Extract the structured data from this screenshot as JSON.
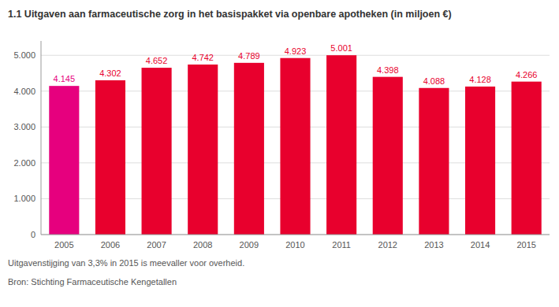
{
  "chart_data": {
    "type": "bar",
    "title": "1.1 Uitgaven aan farmaceutische zorg in het basispakket via openbare apotheken (in miljoen €)",
    "categories": [
      "2005",
      "2006",
      "2007",
      "2008",
      "2009",
      "2010",
      "2011",
      "2012",
      "2013",
      "2014",
      "2015"
    ],
    "values": [
      4145,
      4302,
      4652,
      4742,
      4789,
      4923,
      5001,
      4398,
      4088,
      4128,
      4266
    ],
    "value_labels": [
      "4.145",
      "4.302",
      "4.652",
      "4.742",
      "4.789",
      "4.923",
      "5.001",
      "4.398",
      "4.088",
      "4.128",
      "4.266"
    ],
    "data_labels": true,
    "colors": [
      "#e6007e",
      "#e8002d",
      "#e8002d",
      "#e8002d",
      "#e8002d",
      "#e8002d",
      "#e8002d",
      "#e8002d",
      "#e8002d",
      "#e8002d",
      "#e8002d"
    ],
    "ylim": [
      0,
      5400
    ],
    "yticks": [
      0,
      {
        "value": 1000,
        "label": "1.000"
      },
      {
        "value": 2000,
        "label": "2.000"
      },
      {
        "value": 3000,
        "label": "3.000"
      },
      {
        "value": 4000,
        "label": "4.000"
      },
      {
        "value": 5000,
        "label": "5.000"
      }
    ],
    "grid": true,
    "annotations": [
      "Uitgavenstijging van 3,3% in 2015 is meevaller voor overheid.",
      "Bron: Stichting Farmaceutische Kengetallen"
    ]
  }
}
